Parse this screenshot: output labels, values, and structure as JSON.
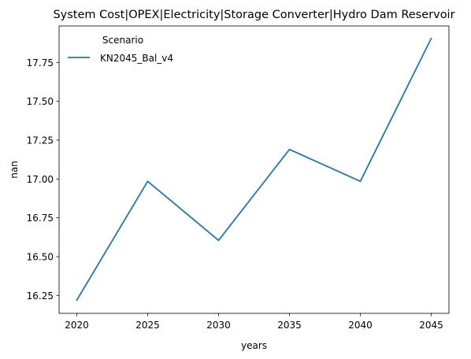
{
  "chart_data": {
    "type": "line",
    "title": "System Cost|OPEX|Electricity|Storage Converter|Hydro Dam Reservoir",
    "xlabel": "years",
    "ylabel": "nan",
    "x": [
      2020,
      2025,
      2030,
      2035,
      2040,
      2045
    ],
    "xticks": [
      "2020",
      "2025",
      "2030",
      "2035",
      "2040",
      "2045"
    ],
    "yticks": [
      "16.25",
      "16.50",
      "16.75",
      "17.00",
      "17.25",
      "17.50",
      "17.75"
    ],
    "xlim": [
      2018.75,
      2046.25
    ],
    "ylim": [
      16.135,
      17.985
    ],
    "grid": false,
    "legend": {
      "title": "Scenario",
      "placement": "top-left"
    },
    "series": [
      {
        "name": "KN2045_Bal_v4",
        "color": "#1f77b4",
        "values": [
          16.22,
          16.985,
          16.605,
          17.19,
          16.985,
          17.905
        ]
      }
    ]
  }
}
